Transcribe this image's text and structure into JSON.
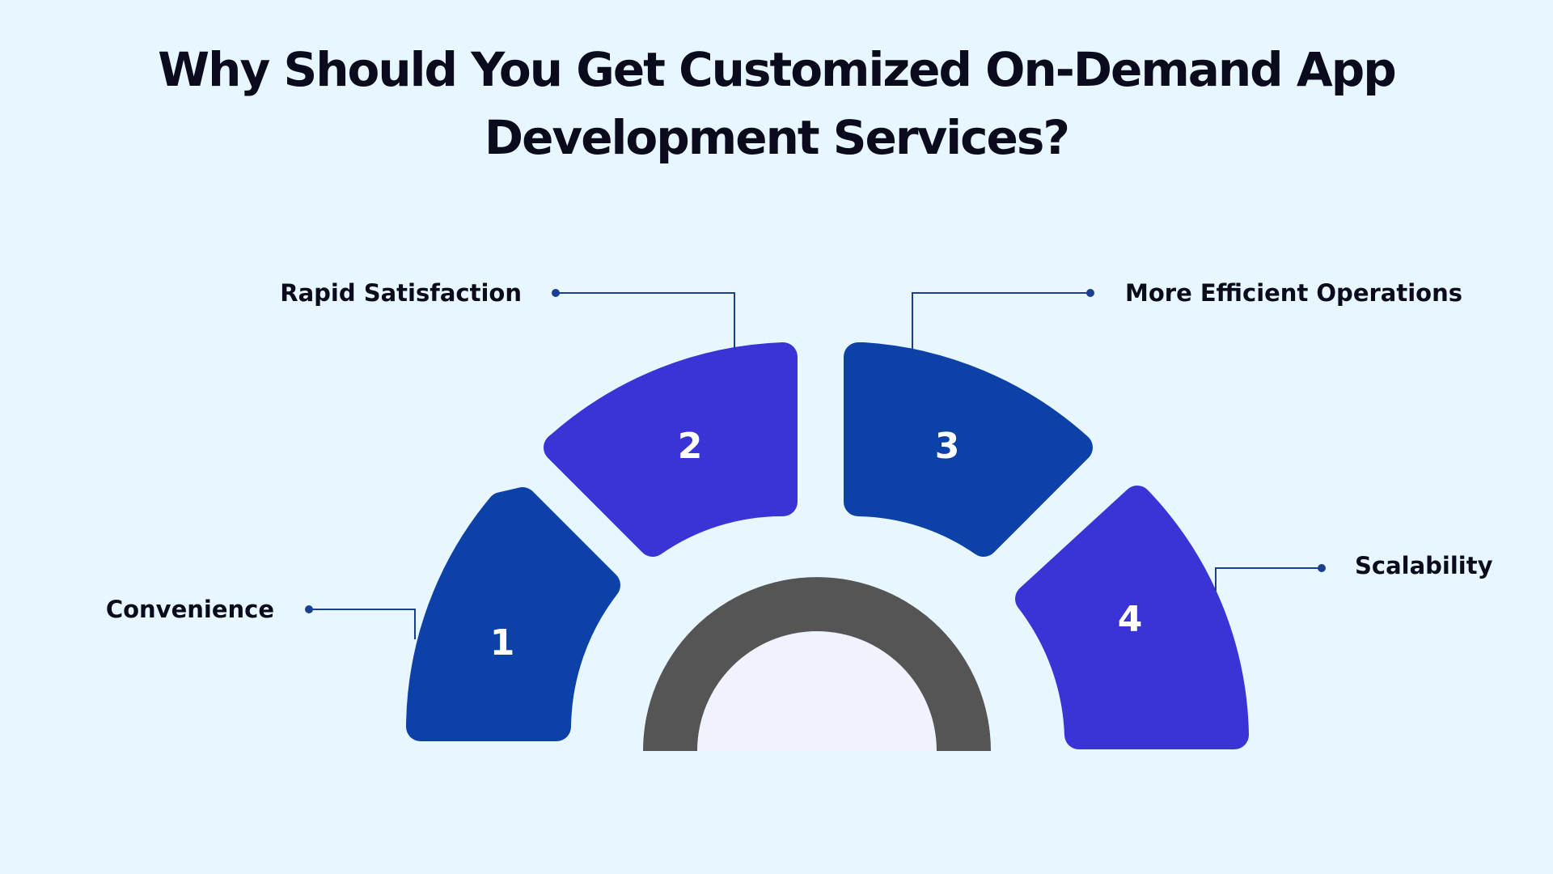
{
  "title": {
    "line1": "Why Should You Get Customized On-Demand App",
    "line2": "Development Services?"
  },
  "colors": {
    "background": "#e8f6ff",
    "dark_blue": "#0c42a8",
    "violet": "#3a33d6",
    "gauge_ring": "#555555",
    "gauge_inner": "#f0f2fd",
    "connector": "#1a3f91"
  },
  "segments": [
    {
      "number": "1",
      "label": "Convenience"
    },
    {
      "number": "2",
      "label": "Rapid Satisfaction"
    },
    {
      "number": "3",
      "label": "More Efficient Operations"
    },
    {
      "number": "4",
      "label": "Scalability"
    }
  ]
}
